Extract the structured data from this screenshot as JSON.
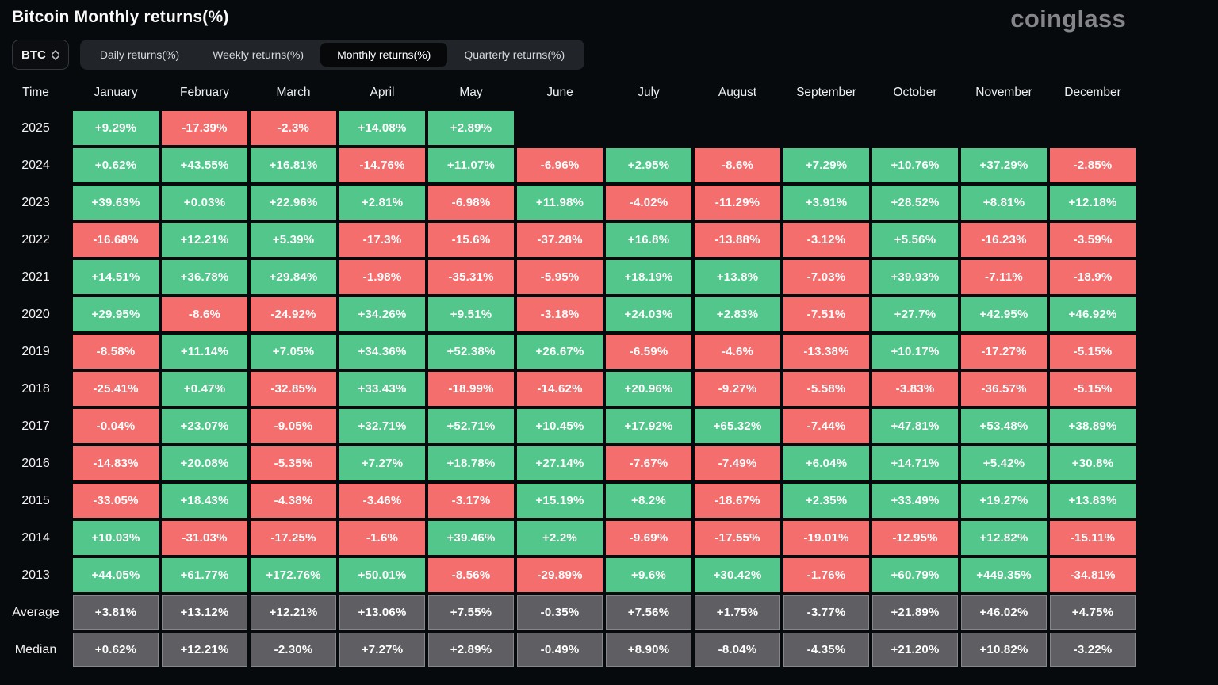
{
  "page": {
    "title": "Bitcoin Monthly returns(%)",
    "brand": "coinglass"
  },
  "controls": {
    "symbol_select": {
      "value": "BTC",
      "icon": "updown-chevron-icon"
    },
    "tabs": [
      {
        "label": "Daily returns(%)",
        "active": false
      },
      {
        "label": "Weekly returns(%)",
        "active": false
      },
      {
        "label": "Monthly returns(%)",
        "active": true
      },
      {
        "label": "Quarterly returns(%)",
        "active": false
      }
    ]
  },
  "palette": {
    "green": "#53c68b",
    "red": "#f46e6e",
    "gray": "#5f5f63",
    "tab_bar_bg": "#212429",
    "active_tab_bg": "#060809",
    "page_bg": "#070a0c"
  },
  "table": {
    "time_header": "Time",
    "months": [
      "January",
      "February",
      "March",
      "April",
      "May",
      "June",
      "July",
      "August",
      "September",
      "October",
      "November",
      "December"
    ],
    "rows": [
      {
        "time": "2025",
        "values": [
          "+9.29%",
          "-17.39%",
          "-2.3%",
          "+14.08%",
          "+2.89%",
          null,
          null,
          null,
          null,
          null,
          null,
          null
        ],
        "colors": [
          "green",
          "red",
          "red",
          "green",
          "green",
          null,
          null,
          null,
          null,
          null,
          null,
          null
        ]
      },
      {
        "time": "2024",
        "values": [
          "+0.62%",
          "+43.55%",
          "+16.81%",
          "-14.76%",
          "+11.07%",
          "-6.96%",
          "+2.95%",
          "-8.6%",
          "+7.29%",
          "+10.76%",
          "+37.29%",
          "-2.85%"
        ],
        "colors": [
          "green",
          "green",
          "green",
          "red",
          "green",
          "red",
          "green",
          "red",
          "green",
          "green",
          "green",
          "red"
        ]
      },
      {
        "time": "2023",
        "values": [
          "+39.63%",
          "+0.03%",
          "+22.96%",
          "+2.81%",
          "-6.98%",
          "+11.98%",
          "-4.02%",
          "-11.29%",
          "+3.91%",
          "+28.52%",
          "+8.81%",
          "+12.18%"
        ],
        "colors": [
          "green",
          "green",
          "green",
          "green",
          "red",
          "green",
          "red",
          "red",
          "green",
          "green",
          "green",
          "green"
        ]
      },
      {
        "time": "2022",
        "values": [
          "-16.68%",
          "+12.21%",
          "+5.39%",
          "-17.3%",
          "-15.6%",
          "-37.28%",
          "+16.8%",
          "-13.88%",
          "-3.12%",
          "+5.56%",
          "-16.23%",
          "-3.59%"
        ],
        "colors": [
          "red",
          "green",
          "green",
          "red",
          "red",
          "red",
          "green",
          "red",
          "red",
          "green",
          "red",
          "red"
        ]
      },
      {
        "time": "2021",
        "values": [
          "+14.51%",
          "+36.78%",
          "+29.84%",
          "-1.98%",
          "-35.31%",
          "-5.95%",
          "+18.19%",
          "+13.8%",
          "-7.03%",
          "+39.93%",
          "-7.11%",
          "-18.9%"
        ],
        "colors": [
          "green",
          "green",
          "green",
          "red",
          "red",
          "red",
          "green",
          "green",
          "red",
          "green",
          "red",
          "red"
        ]
      },
      {
        "time": "2020",
        "values": [
          "+29.95%",
          "-8.6%",
          "-24.92%",
          "+34.26%",
          "+9.51%",
          "-3.18%",
          "+24.03%",
          "+2.83%",
          "-7.51%",
          "+27.7%",
          "+42.95%",
          "+46.92%"
        ],
        "colors": [
          "green",
          "red",
          "red",
          "green",
          "green",
          "red",
          "green",
          "green",
          "red",
          "green",
          "green",
          "green"
        ]
      },
      {
        "time": "2019",
        "values": [
          "-8.58%",
          "+11.14%",
          "+7.05%",
          "+34.36%",
          "+52.38%",
          "+26.67%",
          "-6.59%",
          "-4.6%",
          "-13.38%",
          "+10.17%",
          "-17.27%",
          "-5.15%"
        ],
        "colors": [
          "red",
          "green",
          "green",
          "green",
          "green",
          "green",
          "red",
          "red",
          "red",
          "green",
          "red",
          "red"
        ]
      },
      {
        "time": "2018",
        "values": [
          "-25.41%",
          "+0.47%",
          "-32.85%",
          "+33.43%",
          "-18.99%",
          "-14.62%",
          "+20.96%",
          "-9.27%",
          "-5.58%",
          "-3.83%",
          "-36.57%",
          "-5.15%"
        ],
        "colors": [
          "red",
          "green",
          "red",
          "green",
          "red",
          "red",
          "green",
          "red",
          "red",
          "red",
          "red",
          "red"
        ]
      },
      {
        "time": "2017",
        "values": [
          "-0.04%",
          "+23.07%",
          "-9.05%",
          "+32.71%",
          "+52.71%",
          "+10.45%",
          "+17.92%",
          "+65.32%",
          "-7.44%",
          "+47.81%",
          "+53.48%",
          "+38.89%"
        ],
        "colors": [
          "red",
          "green",
          "red",
          "green",
          "green",
          "green",
          "green",
          "green",
          "red",
          "green",
          "green",
          "green"
        ]
      },
      {
        "time": "2016",
        "values": [
          "-14.83%",
          "+20.08%",
          "-5.35%",
          "+7.27%",
          "+18.78%",
          "+27.14%",
          "-7.67%",
          "-7.49%",
          "+6.04%",
          "+14.71%",
          "+5.42%",
          "+30.8%"
        ],
        "colors": [
          "red",
          "green",
          "red",
          "green",
          "green",
          "green",
          "red",
          "red",
          "green",
          "green",
          "green",
          "green"
        ]
      },
      {
        "time": "2015",
        "values": [
          "-33.05%",
          "+18.43%",
          "-4.38%",
          "-3.46%",
          "-3.17%",
          "+15.19%",
          "+8.2%",
          "-18.67%",
          "+2.35%",
          "+33.49%",
          "+19.27%",
          "+13.83%"
        ],
        "colors": [
          "red",
          "green",
          "red",
          "red",
          "red",
          "green",
          "green",
          "red",
          "green",
          "green",
          "green",
          "green"
        ]
      },
      {
        "time": "2014",
        "values": [
          "+10.03%",
          "-31.03%",
          "-17.25%",
          "-1.6%",
          "+39.46%",
          "+2.2%",
          "-9.69%",
          "-17.55%",
          "-19.01%",
          "-12.95%",
          "+12.82%",
          "-15.11%"
        ],
        "colors": [
          "green",
          "red",
          "red",
          "red",
          "green",
          "green",
          "red",
          "red",
          "red",
          "red",
          "green",
          "red"
        ]
      },
      {
        "time": "2013",
        "values": [
          "+44.05%",
          "+61.77%",
          "+172.76%",
          "+50.01%",
          "-8.56%",
          "-29.89%",
          "+9.6%",
          "+30.42%",
          "-1.76%",
          "+60.79%",
          "+449.35%",
          "-34.81%"
        ],
        "colors": [
          "green",
          "green",
          "green",
          "green",
          "red",
          "red",
          "green",
          "green",
          "red",
          "green",
          "green",
          "red"
        ]
      },
      {
        "time": "Average",
        "values": [
          "+3.81%",
          "+13.12%",
          "+12.21%",
          "+13.06%",
          "+7.55%",
          "-0.35%",
          "+7.56%",
          "+1.75%",
          "-3.77%",
          "+21.89%",
          "+46.02%",
          "+4.75%"
        ],
        "colors": [
          "gray",
          "gray",
          "gray",
          "gray",
          "gray",
          "gray",
          "gray",
          "gray",
          "gray",
          "gray",
          "gray",
          "gray"
        ]
      },
      {
        "time": "Median",
        "values": [
          "+0.62%",
          "+12.21%",
          "-2.30%",
          "+7.27%",
          "+2.89%",
          "-0.49%",
          "+8.90%",
          "-8.04%",
          "-4.35%",
          "+21.20%",
          "+10.82%",
          "-3.22%"
        ],
        "colors": [
          "gray",
          "gray",
          "gray",
          "gray",
          "gray",
          "gray",
          "gray",
          "gray",
          "gray",
          "gray",
          "gray",
          "gray"
        ]
      }
    ]
  }
}
